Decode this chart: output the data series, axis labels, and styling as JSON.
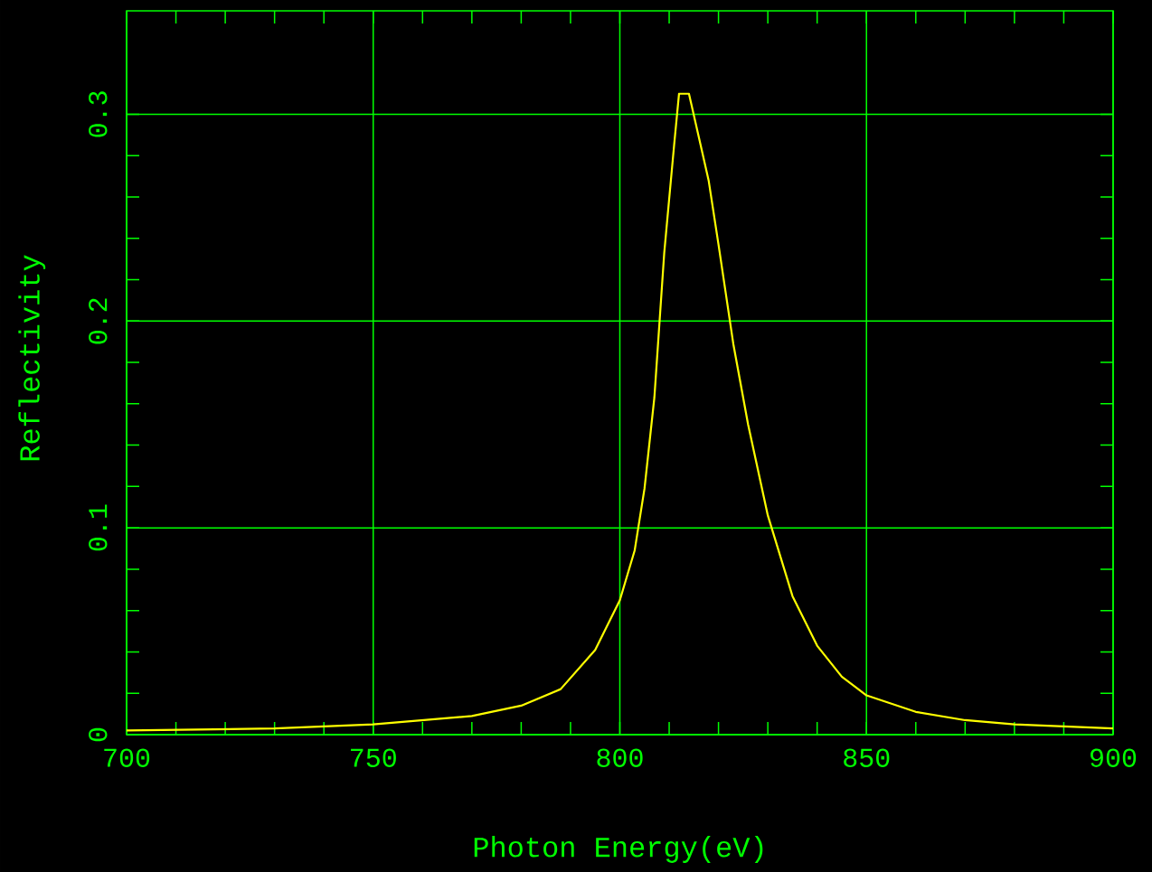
{
  "chart_data": {
    "type": "line",
    "xlabel": "Photon Energy(eV)",
    "ylabel": "Reflectivity",
    "xlim": [
      700,
      900
    ],
    "ylim": [
      0,
      0.35
    ],
    "xticks": [
      700,
      750,
      800,
      850,
      900
    ],
    "yticks": [
      0,
      0.1,
      0.2,
      0.3
    ],
    "grid": true,
    "series": [
      {
        "color": "#ffff00",
        "x": [
          700,
          730,
          750,
          770,
          780,
          788,
          795,
          800,
          803,
          805,
          807,
          809,
          811,
          812,
          814,
          816,
          818,
          820,
          823,
          826,
          830,
          835,
          840,
          845,
          850,
          860,
          870,
          880,
          900
        ],
        "values": [
          0.002,
          0.003,
          0.005,
          0.009,
          0.014,
          0.022,
          0.041,
          0.065,
          0.089,
          0.119,
          0.163,
          0.233,
          0.285,
          0.31,
          0.31,
          0.289,
          0.268,
          0.237,
          0.189,
          0.15,
          0.106,
          0.067,
          0.043,
          0.028,
          0.019,
          0.011,
          0.007,
          0.005,
          0.003
        ]
      }
    ]
  }
}
